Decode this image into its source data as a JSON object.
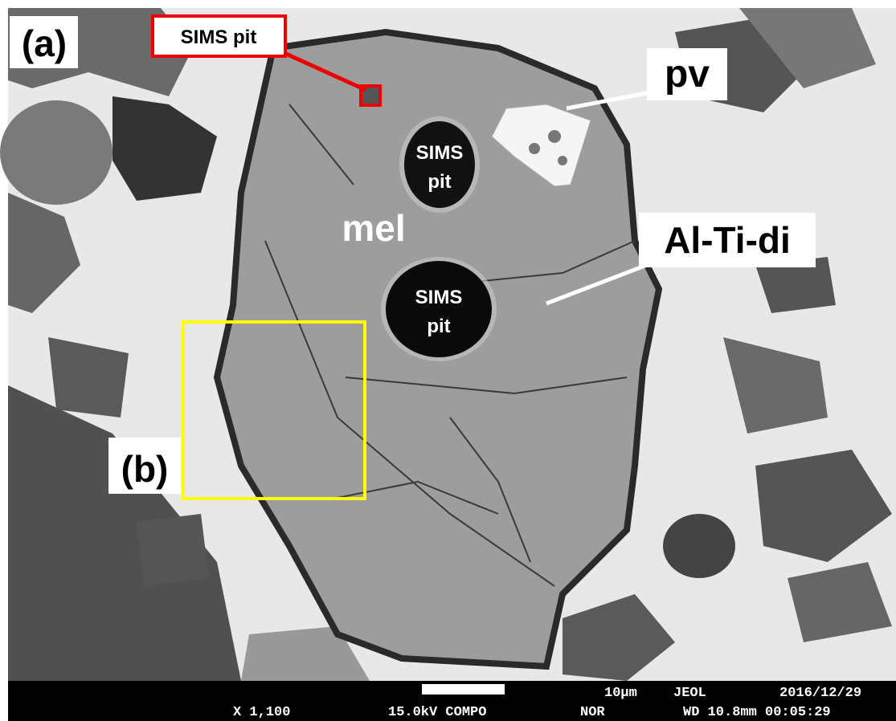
{
  "panel_label": "(a)",
  "callouts": {
    "sims_pit_box": "SIMS pit",
    "pv": "pv",
    "mel": "mel",
    "al_ti_di": "Al-Ti-di",
    "inset_label": "(b)"
  },
  "pits": [
    {
      "line1": "SIMS",
      "line2": "pit"
    },
    {
      "line1": "SIMS",
      "line2": "pit"
    }
  ],
  "info_bar": {
    "scale": "10µm",
    "maker": "JEOL",
    "date": "2016/12/29",
    "magnification": "X 1,100",
    "voltage_mode": "15.0kV COMPO",
    "nor": "NOR",
    "wd_time": "WD 10.8mm 00:05:29"
  }
}
